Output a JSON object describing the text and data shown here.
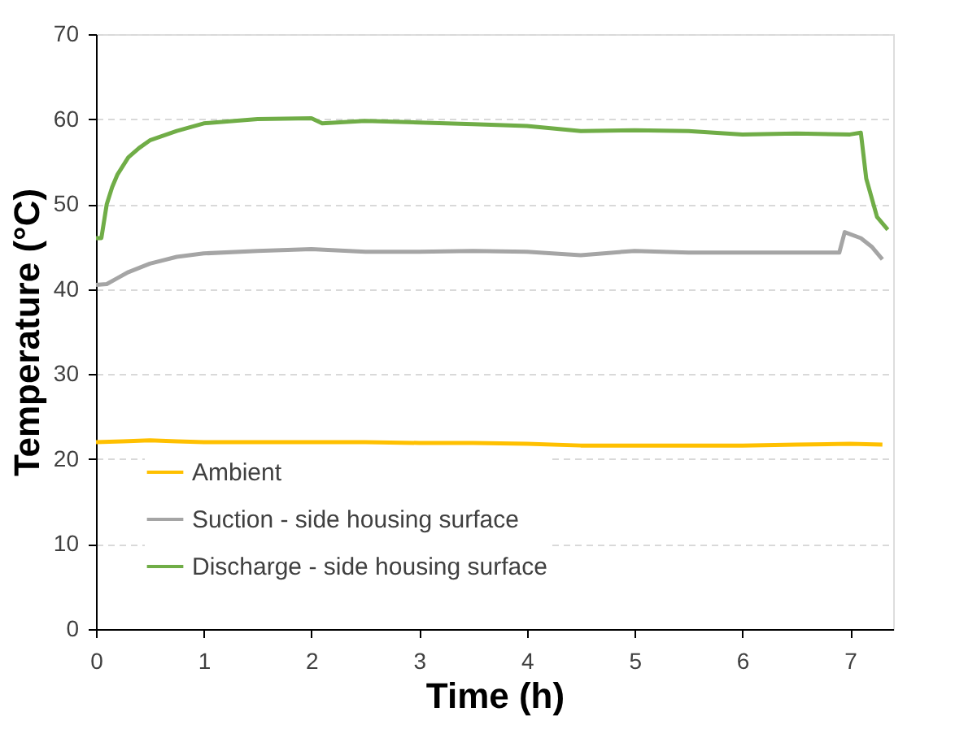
{
  "chart_data": {
    "type": "line",
    "xlabel": "Time (h)",
    "ylabel": "Temperature (°C)",
    "xlim": [
      0,
      7.4
    ],
    "xticks": [
      0,
      1,
      2,
      3,
      4,
      5,
      6,
      7
    ],
    "ylim": [
      0,
      70
    ],
    "yticks": [
      0,
      10,
      20,
      30,
      40,
      50,
      60,
      70
    ],
    "grid": "y",
    "legend": "bottom left",
    "marker": "none",
    "line_style": "solid",
    "series": [
      {
        "name": "Ambient",
        "color": "#ffc000",
        "x": [
          0,
          0.25,
          0.5,
          0.75,
          1,
          1.5,
          2,
          2.5,
          3,
          3.5,
          4,
          4.5,
          5,
          5.5,
          6,
          6.5,
          7,
          7.3
        ],
        "values": [
          22,
          22.1,
          22.2,
          22.1,
          22,
          22,
          22,
          22,
          21.9,
          21.9,
          21.8,
          21.6,
          21.6,
          21.6,
          21.6,
          21.7,
          21.8,
          21.7
        ]
      },
      {
        "name": "Suction - side housing surface",
        "color": "#a5a5a5",
        "x": [
          0,
          0.1,
          0.2,
          0.3,
          0.5,
          0.75,
          1,
          1.5,
          2,
          2.5,
          3,
          3.5,
          4,
          4.5,
          5,
          5.5,
          6,
          6.5,
          6.9,
          6.95,
          7.1,
          7.2,
          7.3
        ],
        "values": [
          40.5,
          40.6,
          41.3,
          42,
          43,
          43.8,
          44.2,
          44.5,
          44.7,
          44.4,
          44.4,
          44.5,
          44.4,
          44,
          44.5,
          44.3,
          44.3,
          44.3,
          44.3,
          46.7,
          46,
          45,
          43.5
        ]
      },
      {
        "name": "Discharge - side housing surface",
        "color": "#70ad47",
        "x": [
          0,
          0.05,
          0.1,
          0.15,
          0.2,
          0.3,
          0.4,
          0.5,
          0.75,
          1,
          1.5,
          2,
          2.1,
          2.5,
          3,
          3.5,
          4,
          4.5,
          5,
          5.5,
          6,
          6.5,
          7,
          7.1,
          7.15,
          7.25,
          7.35
        ],
        "values": [
          46,
          46,
          50,
          52,
          53.5,
          55.5,
          56.6,
          57.5,
          58.6,
          59.5,
          60,
          60.1,
          59.5,
          59.8,
          59.6,
          59.4,
          59.2,
          58.6,
          58.7,
          58.6,
          58.2,
          58.3,
          58.2,
          58.4,
          53,
          48.5,
          47
        ]
      }
    ]
  }
}
